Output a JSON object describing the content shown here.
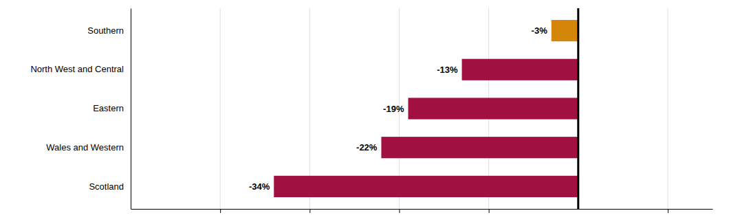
{
  "chart_data": {
    "type": "bar",
    "orientation": "horizontal",
    "categories": [
      "Scotland",
      "Wales and Western",
      "Eastern",
      "North West and Central",
      "Southern"
    ],
    "values": [
      -34,
      -22,
      -19,
      -13,
      -3
    ],
    "value_labels": [
      "-34%",
      "-22%",
      "-19%",
      "-13%",
      "-3%"
    ],
    "data_labels": true,
    "colors": [
      "#A01040",
      "#A01040",
      "#A01040",
      "#A01040",
      "#D4860A"
    ],
    "xlim": [
      -50,
      15
    ],
    "xticks": [
      -40,
      -30,
      -20,
      -10,
      10
    ],
    "grid": true,
    "tick_labels": "y"
  }
}
